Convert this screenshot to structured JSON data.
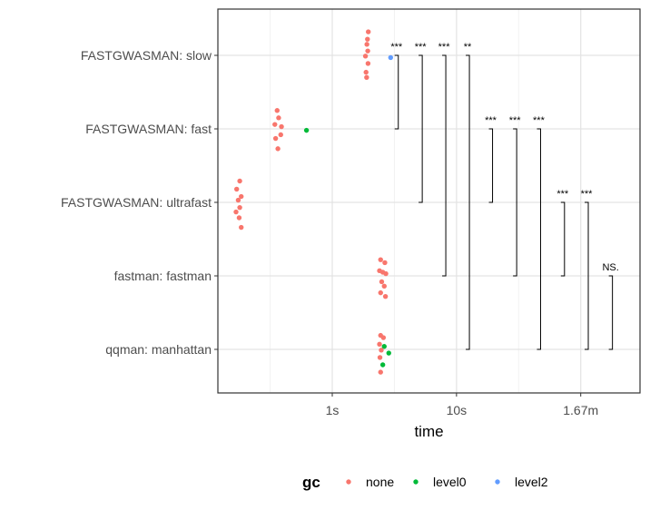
{
  "chart_data": {
    "type": "scatter",
    "xlabel": "time",
    "x_scale": "log",
    "xlim": [
      0.12,
      300
    ],
    "x_ticks": [
      {
        "value": 1,
        "label": "1s"
      },
      {
        "value": 10,
        "label": "10s"
      },
      {
        "value": 100,
        "label": "1.67m"
      }
    ],
    "categories": [
      "FASTGWASMAN: slow",
      "FASTGWASMAN: fast",
      "FASTGWASMAN: ultrafast",
      "fastman: fastman",
      "qqman: manhattan"
    ],
    "grid": true,
    "legend": {
      "title": "gc",
      "position": "bottom",
      "entries": [
        {
          "name": "none",
          "color": "#F8766D"
        },
        {
          "name": "level0",
          "color": "#00BA38"
        },
        {
          "name": "level2",
          "color": "#619CFF"
        }
      ]
    },
    "points": [
      {
        "category": "FASTGWASMAN: slow",
        "gc": "none",
        "x": 1.95,
        "jitter": 0.32
      },
      {
        "category": "FASTGWASMAN: slow",
        "gc": "none",
        "x": 1.92,
        "jitter": 0.22
      },
      {
        "category": "FASTGWASMAN: slow",
        "gc": "none",
        "x": 1.9,
        "jitter": 0.15
      },
      {
        "category": "FASTGWASMAN: slow",
        "gc": "none",
        "x": 1.93,
        "jitter": 0.06
      },
      {
        "category": "FASTGWASMAN: slow",
        "gc": "none",
        "x": 1.85,
        "jitter": -0.01
      },
      {
        "category": "FASTGWASMAN: slow",
        "gc": "none",
        "x": 1.94,
        "jitter": -0.11
      },
      {
        "category": "FASTGWASMAN: slow",
        "gc": "none",
        "x": 1.87,
        "jitter": -0.23
      },
      {
        "category": "FASTGWASMAN: slow",
        "gc": "none",
        "x": 1.89,
        "jitter": -0.3
      },
      {
        "category": "FASTGWASMAN: slow",
        "gc": "level2",
        "x": 2.95,
        "jitter": -0.03
      },
      {
        "category": "FASTGWASMAN: fast",
        "gc": "none",
        "x": 0.36,
        "jitter": 0.25
      },
      {
        "category": "FASTGWASMAN: fast",
        "gc": "none",
        "x": 0.37,
        "jitter": 0.15
      },
      {
        "category": "FASTGWASMAN: fast",
        "gc": "none",
        "x": 0.345,
        "jitter": 0.06
      },
      {
        "category": "FASTGWASMAN: fast",
        "gc": "none",
        "x": 0.39,
        "jitter": 0.03
      },
      {
        "category": "FASTGWASMAN: fast",
        "gc": "none",
        "x": 0.385,
        "jitter": -0.08
      },
      {
        "category": "FASTGWASMAN: fast",
        "gc": "none",
        "x": 0.35,
        "jitter": -0.13
      },
      {
        "category": "FASTGWASMAN: fast",
        "gc": "none",
        "x": 0.365,
        "jitter": -0.27
      },
      {
        "category": "FASTGWASMAN: fast",
        "gc": "level0",
        "x": 0.62,
        "jitter": -0.02
      },
      {
        "category": "FASTGWASMAN: ultrafast",
        "gc": "none",
        "x": 0.18,
        "jitter": 0.29
      },
      {
        "category": "FASTGWASMAN: ultrafast",
        "gc": "none",
        "x": 0.17,
        "jitter": 0.18
      },
      {
        "category": "FASTGWASMAN: ultrafast",
        "gc": "none",
        "x": 0.185,
        "jitter": 0.08
      },
      {
        "category": "FASTGWASMAN: ultrafast",
        "gc": "none",
        "x": 0.175,
        "jitter": 0.03
      },
      {
        "category": "FASTGWASMAN: ultrafast",
        "gc": "none",
        "x": 0.18,
        "jitter": -0.07
      },
      {
        "category": "FASTGWASMAN: ultrafast",
        "gc": "none",
        "x": 0.168,
        "jitter": -0.13
      },
      {
        "category": "FASTGWASMAN: ultrafast",
        "gc": "none",
        "x": 0.178,
        "jitter": -0.21
      },
      {
        "category": "FASTGWASMAN: ultrafast",
        "gc": "none",
        "x": 0.185,
        "jitter": -0.34
      },
      {
        "category": "fastman: fastman",
        "gc": "none",
        "x": 2.45,
        "jitter": 0.22
      },
      {
        "category": "fastman: fastman",
        "gc": "none",
        "x": 2.65,
        "jitter": 0.18
      },
      {
        "category": "fastman: fastman",
        "gc": "none",
        "x": 2.4,
        "jitter": 0.07
      },
      {
        "category": "fastman: fastman",
        "gc": "none",
        "x": 2.55,
        "jitter": 0.05
      },
      {
        "category": "fastman: fastman",
        "gc": "none",
        "x": 2.7,
        "jitter": 0.03
      },
      {
        "category": "fastman: fastman",
        "gc": "none",
        "x": 2.5,
        "jitter": -0.08
      },
      {
        "category": "fastman: fastman",
        "gc": "none",
        "x": 2.62,
        "jitter": -0.14
      },
      {
        "category": "fastman: fastman",
        "gc": "none",
        "x": 2.45,
        "jitter": -0.23
      },
      {
        "category": "fastman: fastman",
        "gc": "none",
        "x": 2.68,
        "jitter": -0.28
      },
      {
        "category": "qqman: manhattan",
        "gc": "none",
        "x": 2.45,
        "jitter": 0.19
      },
      {
        "category": "qqman: manhattan",
        "gc": "none",
        "x": 2.58,
        "jitter": 0.16
      },
      {
        "category": "qqman: manhattan",
        "gc": "none",
        "x": 2.4,
        "jitter": 0.07
      },
      {
        "category": "qqman: manhattan",
        "gc": "level0",
        "x": 2.62,
        "jitter": 0.04
      },
      {
        "category": "qqman: manhattan",
        "gc": "none",
        "x": 2.48,
        "jitter": -0.01
      },
      {
        "category": "qqman: manhattan",
        "gc": "level0",
        "x": 2.85,
        "jitter": -0.05
      },
      {
        "category": "qqman: manhattan",
        "gc": "none",
        "x": 2.42,
        "jitter": -0.11
      },
      {
        "category": "qqman: manhattan",
        "gc": "level0",
        "x": 2.55,
        "jitter": -0.21
      },
      {
        "category": "qqman: manhattan",
        "gc": "none",
        "x": 2.45,
        "jitter": -0.31
      }
    ],
    "comparisons": [
      {
        "from": "FASTGWASMAN: slow",
        "to": "FASTGWASMAN: fast",
        "label": "***",
        "x": 3.4
      },
      {
        "from": "FASTGWASMAN: slow",
        "to": "FASTGWASMAN: ultrafast",
        "label": "***",
        "x": 5.3
      },
      {
        "from": "FASTGWASMAN: slow",
        "to": "fastman: fastman",
        "label": "***",
        "x": 8.2
      },
      {
        "from": "FASTGWASMAN: slow",
        "to": "qqman: manhattan",
        "label": "**",
        "x": 12.7
      },
      {
        "from": "FASTGWASMAN: fast",
        "to": "FASTGWASMAN: ultrafast",
        "label": "***",
        "x": 19.5
      },
      {
        "from": "FASTGWASMAN: fast",
        "to": "fastman: fastman",
        "label": "***",
        "x": 30.5
      },
      {
        "from": "FASTGWASMAN: fast",
        "to": "qqman: manhattan",
        "label": "***",
        "x": 47.5
      },
      {
        "from": "FASTGWASMAN: ultrafast",
        "to": "fastman: fastman",
        "label": "***",
        "x": 74
      },
      {
        "from": "FASTGWASMAN: ultrafast",
        "to": "qqman: manhattan",
        "label": "***",
        "x": 115
      },
      {
        "from": "fastman: fastman",
        "to": "qqman: manhattan",
        "label": "NS.",
        "x": 180
      }
    ]
  }
}
